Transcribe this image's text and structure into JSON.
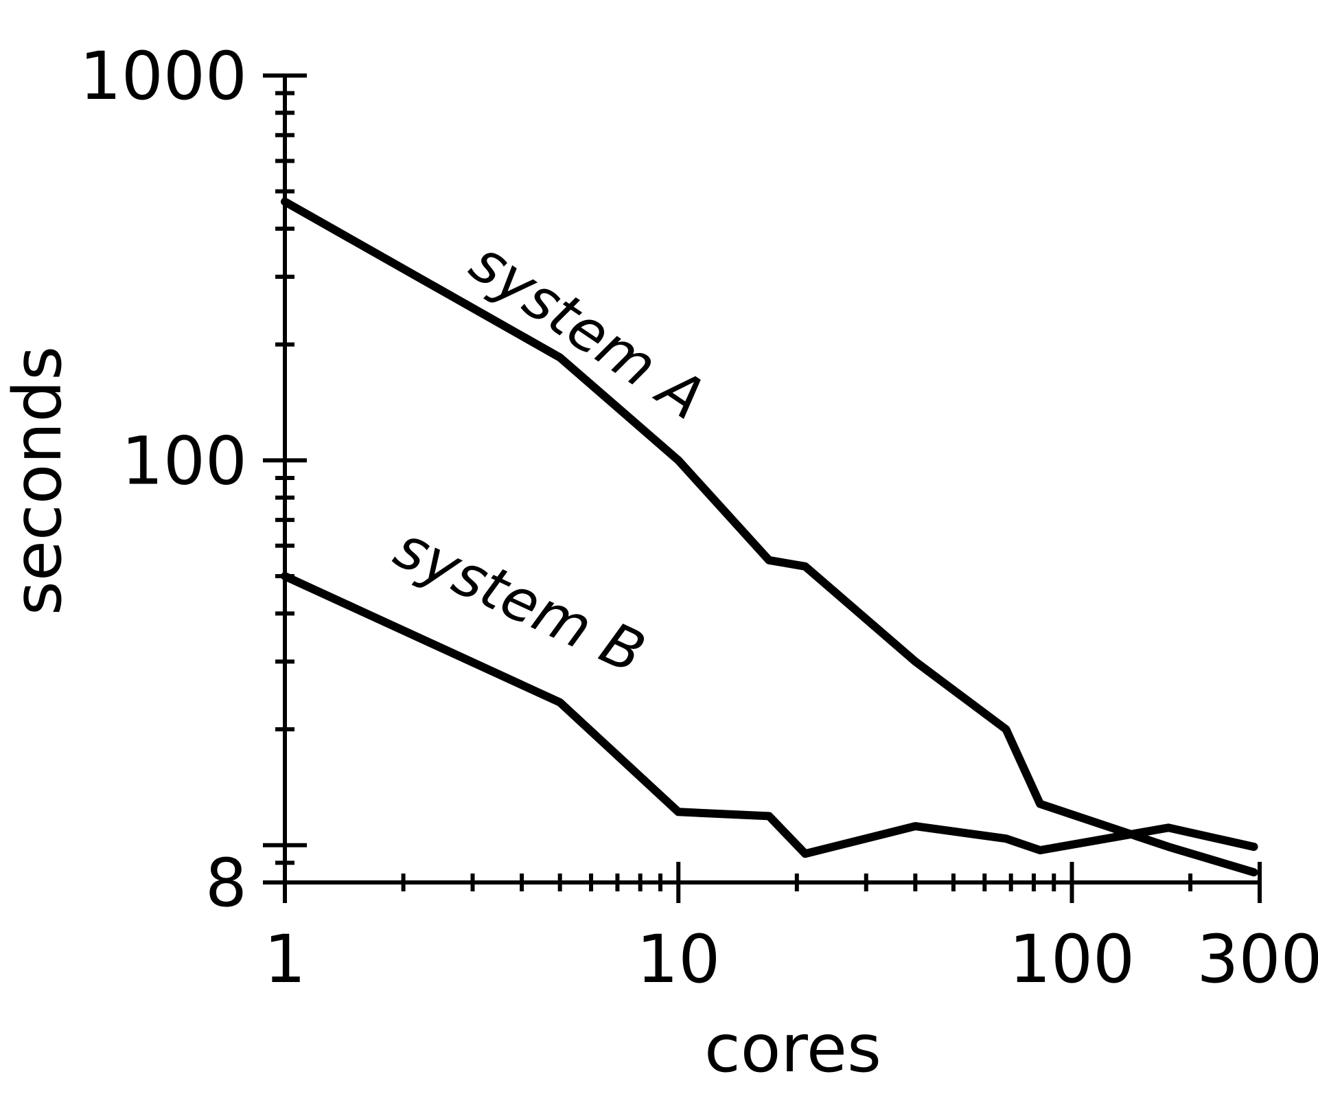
{
  "chart_data": {
    "type": "line",
    "xlabel": "cores",
    "ylabel": "seconds",
    "xscale": "log",
    "yscale": "log",
    "xlim": [
      1,
      300
    ],
    "ylim": [
      8,
      1000
    ],
    "x_tick_labels": [
      {
        "value": 1,
        "label": "1"
      },
      {
        "value": 10,
        "label": "10"
      },
      {
        "value": 100,
        "label": "100"
      },
      {
        "value": 300,
        "label": "300"
      }
    ],
    "y_tick_labels": [
      {
        "value": 8,
        "label": "8"
      },
      {
        "value": 100,
        "label": "100"
      },
      {
        "value": 1000,
        "label": "1000"
      }
    ],
    "series": [
      {
        "name": "system A",
        "x": [
          1,
          5,
          10,
          17,
          21,
          40,
          68,
          83,
          176,
          290
        ],
        "y": [
          470,
          185,
          100,
          55,
          53,
          30,
          20,
          12.8,
          9.9,
          8.5
        ]
      },
      {
        "name": "system B",
        "x": [
          1,
          5,
          10,
          17,
          21,
          40,
          68,
          83,
          176,
          290
        ],
        "y": [
          50,
          23.5,
          12.2,
          11.9,
          9.5,
          11.2,
          10.4,
          9.7,
          11.1,
          9.9
        ]
      }
    ],
    "line_color": "#000000",
    "grid": false
  }
}
